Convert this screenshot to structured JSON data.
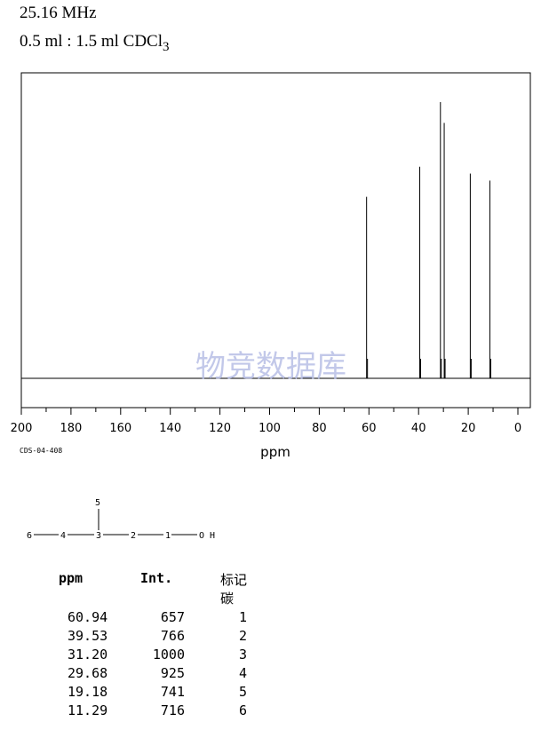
{
  "header": {
    "frequency": "25.16 MHz",
    "solvent_prefix": "0.5 ml : 1.5 ml CDCl",
    "solvent_sub": "3"
  },
  "watermark": "物竞数据库",
  "spectrum_code": "CDS-04-408",
  "chart_data": {
    "type": "line",
    "subtype": "nmr-stick-spectrum",
    "xlabel": "ppm",
    "xlim": [
      200,
      0
    ],
    "x_ticks": [
      200,
      180,
      160,
      140,
      120,
      100,
      80,
      60,
      40,
      20,
      0
    ],
    "ylim": [
      0,
      1000
    ],
    "peaks": [
      {
        "ppm": 60.94,
        "intensity": 657
      },
      {
        "ppm": 39.53,
        "intensity": 766
      },
      {
        "ppm": 31.2,
        "intensity": 1000
      },
      {
        "ppm": 29.68,
        "intensity": 925
      },
      {
        "ppm": 19.18,
        "intensity": 741
      },
      {
        "ppm": 11.29,
        "intensity": 716
      }
    ],
    "grid": false,
    "legend": "none"
  },
  "structure": {
    "atoms": [
      "6",
      "4",
      "3",
      "2",
      "1",
      "O H",
      "5"
    ]
  },
  "table": {
    "headers": [
      "ppm",
      "Int.",
      "标记碳"
    ],
    "rows": [
      [
        "60.94",
        "657",
        "1"
      ],
      [
        "39.53",
        "766",
        "2"
      ],
      [
        "31.20",
        "1000",
        "3"
      ],
      [
        "29.68",
        "925",
        "4"
      ],
      [
        "19.18",
        "741",
        "5"
      ],
      [
        "11.29",
        "716",
        "6"
      ]
    ]
  }
}
